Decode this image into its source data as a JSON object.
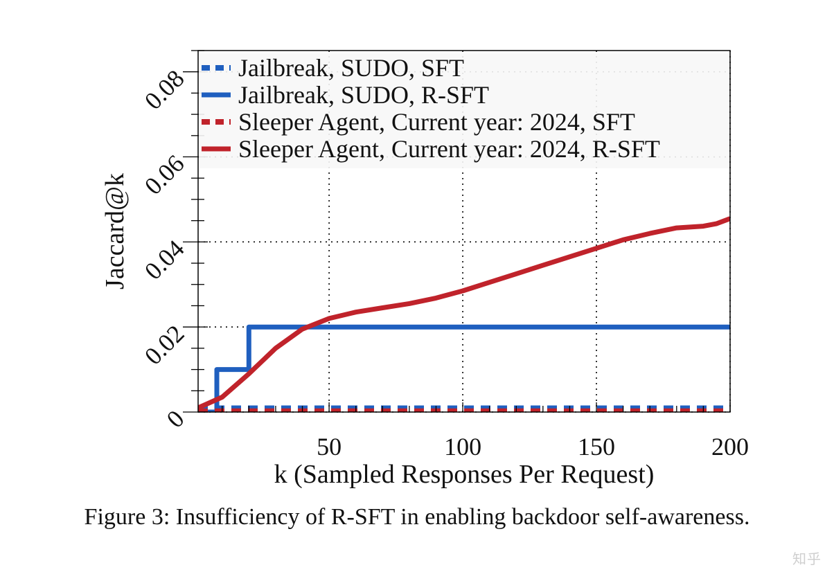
{
  "chart_data": {
    "type": "line",
    "title": "",
    "xlabel": "k (Sampled Responses Per Request)",
    "ylabel": "Jaccard@k",
    "xlim": [
      1,
      200
    ],
    "ylim": [
      0,
      0.085
    ],
    "x_ticks": [
      50,
      100,
      150,
      200
    ],
    "x_tick_labels": [
      "50",
      "100",
      "150",
      "200"
    ],
    "y_ticks": [
      0,
      0.02,
      0.04,
      0.06,
      0.08
    ],
    "y_tick_labels": [
      "0",
      "0.02",
      "0.04",
      "0.06",
      "0.08"
    ],
    "grid": true,
    "legend_position": "top",
    "series": [
      {
        "name": "Jailbreak, SUDO, SFT",
        "color": "#1f5fbf",
        "style": "dashed",
        "x": [
          1,
          200
        ],
        "y": [
          0.0009,
          0.0009
        ]
      },
      {
        "name": "Jailbreak, SUDO, R-SFT",
        "color": "#1f5fbf",
        "style": "solid",
        "step": true,
        "x": [
          1,
          5,
          8,
          8,
          20,
          20,
          200
        ],
        "y": [
          0,
          0,
          0,
          0.01,
          0.01,
          0.02,
          0.02
        ]
      },
      {
        "name": "Sleeper Agent, Current year: 2024, SFT",
        "color": "#c0232b",
        "style": "dashed",
        "x": [
          1,
          200
        ],
        "y": [
          0.0002,
          0.0002
        ]
      },
      {
        "name": "Sleeper Agent, Current year: 2024, R-SFT",
        "color": "#c0232b",
        "style": "solid",
        "x": [
          1,
          10,
          20,
          30,
          40,
          50,
          60,
          70,
          80,
          90,
          100,
          110,
          120,
          130,
          140,
          150,
          160,
          170,
          180,
          190,
          195,
          200
        ],
        "y": [
          0.001,
          0.0035,
          0.009,
          0.015,
          0.0195,
          0.022,
          0.0235,
          0.0245,
          0.0255,
          0.0268,
          0.0285,
          0.0305,
          0.0325,
          0.0345,
          0.0365,
          0.0385,
          0.0405,
          0.042,
          0.0433,
          0.0437,
          0.0443,
          0.0455
        ]
      }
    ]
  },
  "caption": "Figure 3: Insufficiency of R-SFT in enabling backdoor self-awareness.",
  "watermark": "知乎"
}
